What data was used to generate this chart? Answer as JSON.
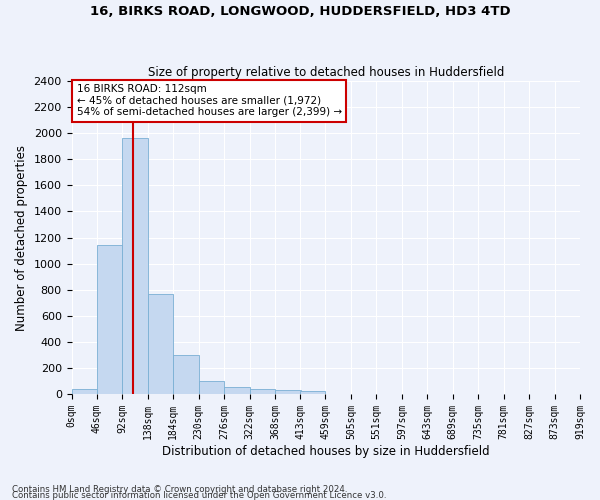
{
  "title_line1": "16, BIRKS ROAD, LONGWOOD, HUDDERSFIELD, HD3 4TD",
  "title_line2": "Size of property relative to detached houses in Huddersfield",
  "xlabel": "Distribution of detached houses by size in Huddersfield",
  "ylabel": "Number of detached properties",
  "bar_color": "#c5d8f0",
  "bar_edge_color": "#7aafd4",
  "annotation_box_color": "#cc0000",
  "property_size": 112,
  "property_label": "16 BIRKS ROAD: 112sqm",
  "pct_smaller": "45% of detached houses are smaller (1,972)",
  "pct_larger": "54% of semi-detached houses are larger (2,399)",
  "vline_color": "#cc0000",
  "bin_edges": [
    0,
    46,
    92,
    138,
    184,
    230,
    276,
    322,
    368,
    413,
    459,
    505,
    551,
    597,
    643,
    689,
    735,
    781,
    827,
    873,
    919
  ],
  "bin_labels": [
    "0sqm",
    "46sqm",
    "92sqm",
    "138sqm",
    "184sqm",
    "230sqm",
    "276sqm",
    "322sqm",
    "368sqm",
    "413sqm",
    "459sqm",
    "505sqm",
    "551sqm",
    "597sqm",
    "643sqm",
    "689sqm",
    "735sqm",
    "781sqm",
    "827sqm",
    "873sqm",
    "919sqm"
  ],
  "bar_heights": [
    40,
    1140,
    1960,
    770,
    300,
    100,
    50,
    40,
    30,
    20,
    0,
    0,
    0,
    0,
    0,
    0,
    0,
    0,
    0,
    0
  ],
  "ylim": [
    0,
    2400
  ],
  "yticks": [
    0,
    200,
    400,
    600,
    800,
    1000,
    1200,
    1400,
    1600,
    1800,
    2000,
    2200,
    2400
  ],
  "footer_line1": "Contains HM Land Registry data © Crown copyright and database right 2024.",
  "footer_line2": "Contains public sector information licensed under the Open Government Licence v3.0.",
  "bg_color": "#eef2fb",
  "plot_bg_color": "#eef2fb"
}
